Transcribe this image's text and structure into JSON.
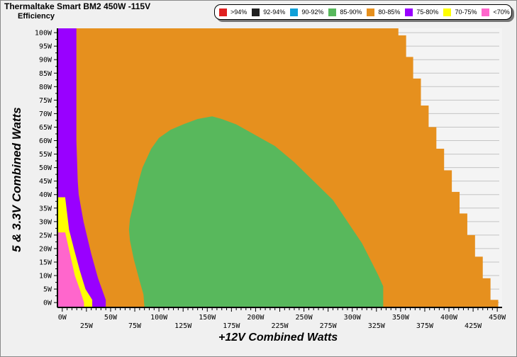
{
  "title": "Thermaltake Smart BM2 450W -115V",
  "subtitle": "Efficiency",
  "legend": [
    {
      "label": ">94%",
      "color": "#e02020"
    },
    {
      "label": "92-94%",
      "color": "#202020"
    },
    {
      "label": "90-92%",
      "color": "#10a0d8"
    },
    {
      "label": "85-90%",
      "color": "#58b85c"
    },
    {
      "label": "80-85%",
      "color": "#e6901e"
    },
    {
      "label": "75-80%",
      "color": "#9900ff"
    },
    {
      "label": "70-75%",
      "color": "#ffff00"
    },
    {
      "label": "<70%",
      "color": "#ff66cc"
    }
  ],
  "chart_data": {
    "type": "heatmap",
    "title": "Thermaltake Smart BM2 450W -115V",
    "subtitle": "Efficiency",
    "xlabel": "+12V Combined Watts",
    "ylabel": "5 & 3.3V Combined Watts",
    "xlim": [
      -5,
      455
    ],
    "ylim": [
      -1.8,
      101.6
    ],
    "xticks": [
      "0W",
      "25W",
      "50W",
      "75W",
      "100W",
      "125W",
      "150W",
      "175W",
      "200W",
      "225W",
      "250W",
      "275W",
      "300W",
      "325W",
      "350W",
      "375W",
      "400W",
      "425W",
      "450W"
    ],
    "yticks": [
      "0W",
      "5W",
      "10W",
      "15W",
      "20W",
      "25W",
      "30W",
      "35W",
      "40W",
      "45W",
      "50W",
      "55W",
      "60W",
      "65W",
      "70W",
      "75W",
      "80W",
      "85W",
      "90W",
      "95W",
      "100W"
    ],
    "grid": "horizontal",
    "legend_position": "top-right",
    "regions": {
      "80-85%_steps": [
        [
          99,
          101.6,
          347.7
        ],
        [
          91,
          99,
          355.7
        ],
        [
          83,
          91,
          363
        ],
        [
          73,
          83,
          371
        ],
        [
          65,
          73,
          379
        ],
        [
          57,
          65,
          387
        ],
        [
          49,
          57,
          395
        ],
        [
          41,
          49,
          403
        ],
        [
          33,
          41,
          411
        ],
        [
          25,
          33,
          419
        ],
        [
          17,
          25,
          427
        ],
        [
          9,
          17,
          435
        ],
        [
          1,
          9,
          443
        ],
        [
          -1.8,
          1,
          451
        ]
      ],
      "75-80%": [
        [
          -5,
          101.6
        ],
        [
          14.6,
          101.6
        ],
        [
          14.6,
          60
        ],
        [
          16,
          45
        ],
        [
          17,
          40
        ],
        [
          22,
          30
        ],
        [
          30,
          18
        ],
        [
          37,
          9
        ],
        [
          42,
          4
        ],
        [
          45,
          1
        ],
        [
          45,
          -1.8
        ],
        [
          -5,
          -1.8
        ]
      ],
      "70-75%": [
        [
          -5,
          39
        ],
        [
          3,
          39
        ],
        [
          5,
          33
        ],
        [
          7,
          27
        ],
        [
          12,
          20
        ],
        [
          18,
          12
        ],
        [
          24,
          5
        ],
        [
          31,
          1
        ],
        [
          31,
          -1.8
        ],
        [
          -5,
          -1.8
        ]
      ],
      "<70%": [
        [
          -5,
          26
        ],
        [
          3,
          26
        ],
        [
          8,
          18
        ],
        [
          13,
          10
        ],
        [
          18,
          5
        ],
        [
          22.5,
          0
        ],
        [
          22.5,
          -1.8
        ],
        [
          -5,
          -1.8
        ]
      ],
      "85-90%": [
        [
          85,
          -1.8
        ],
        [
          84,
          3
        ],
        [
          80,
          8
        ],
        [
          74,
          16
        ],
        [
          70,
          23
        ],
        [
          69,
          27
        ],
        [
          70,
          31
        ],
        [
          74,
          37
        ],
        [
          79,
          45
        ],
        [
          83,
          50
        ],
        [
          92,
          57
        ],
        [
          100,
          61
        ],
        [
          112,
          64
        ],
        [
          125,
          66
        ],
        [
          140,
          68
        ],
        [
          155,
          69
        ],
        [
          165,
          68
        ],
        [
          180,
          66
        ],
        [
          200,
          62
        ],
        [
          220,
          58
        ],
        [
          240,
          52
        ],
        [
          260,
          45
        ],
        [
          280,
          38
        ],
        [
          295,
          30
        ],
        [
          310,
          22
        ],
        [
          320,
          15
        ],
        [
          327,
          10
        ],
        [
          332,
          6
        ],
        [
          332,
          -1.8
        ]
      ]
    }
  }
}
